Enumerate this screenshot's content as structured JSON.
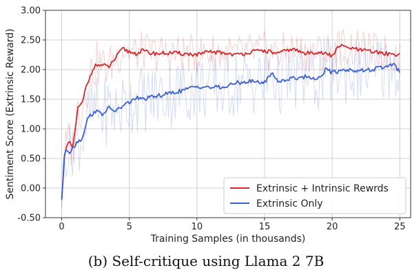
{
  "chart_data": {
    "type": "line",
    "xlabel": "Training Samples (in thousands)",
    "ylabel": "Sentiment Score (Extrinsic Reward)",
    "xlim": [
      -1.2,
      25.8
    ],
    "ylim": [
      -0.5,
      3.0
    ],
    "xticks": [
      0,
      5,
      10,
      15,
      20,
      25
    ],
    "yticks": [
      -0.5,
      0.0,
      0.5,
      1.0,
      1.5,
      2.0,
      2.5,
      3.0
    ],
    "ytick_labels": [
      "-0.50",
      "0.00",
      "0.50",
      "1.00",
      "1.50",
      "2.00",
      "2.50",
      "3.00"
    ],
    "grid": true,
    "legend_position": "lower-right",
    "series": [
      {
        "name": "Extrinsic + Intrinsic Rewrds",
        "color": "#d62728",
        "x": [
          0,
          0.2,
          0.4,
          0.6,
          0.8,
          1.0,
          1.2,
          1.5,
          1.8,
          2.0,
          2.3,
          2.6,
          3.0,
          3.5,
          4.0,
          4.5,
          5.0,
          5.5,
          6.0,
          6.5,
          7.0,
          8.0,
          9.0,
          10.0,
          11.0,
          12.0,
          13.0,
          14.0,
          15.0,
          16.0,
          17.0,
          18.0,
          19.0,
          20.0,
          20.5,
          21.0,
          22.0,
          23.0,
          24.0,
          25.0
        ],
        "y": [
          -0.2,
          0.55,
          0.7,
          0.78,
          0.65,
          1.0,
          1.35,
          1.42,
          1.7,
          1.82,
          2.02,
          2.08,
          2.07,
          2.05,
          2.2,
          2.35,
          2.3,
          2.27,
          2.32,
          2.28,
          2.27,
          2.28,
          2.27,
          2.25,
          2.3,
          2.28,
          2.25,
          2.3,
          2.32,
          2.27,
          2.35,
          2.27,
          2.3,
          2.23,
          2.4,
          2.38,
          2.33,
          2.3,
          2.27,
          2.25
        ],
        "band": [
          0.25,
          0.45,
          0.45,
          0.45,
          0.45,
          0.45,
          0.45,
          0.42,
          0.42,
          0.42,
          0.4,
          0.4,
          0.38,
          0.38,
          0.38,
          0.35,
          0.33,
          0.33,
          0.33,
          0.33,
          0.33,
          0.33,
          0.33,
          0.33,
          0.33,
          0.33,
          0.33,
          0.33,
          0.33,
          0.33,
          0.33,
          0.33,
          0.33,
          0.33,
          0.33,
          0.33,
          0.33,
          0.33,
          0.33,
          0.33
        ]
      },
      {
        "name": "Extrinsic Only",
        "color": "#3a5fd8",
        "x": [
          0,
          0.2,
          0.4,
          0.6,
          0.8,
          1.0,
          1.2,
          1.5,
          1.8,
          2.0,
          2.5,
          3.0,
          3.5,
          4.0,
          4.5,
          5.0,
          5.5,
          6.0,
          7.0,
          8.0,
          9.0,
          10.0,
          11.0,
          12.0,
          13.0,
          14.0,
          15.0,
          15.5,
          16.0,
          17.0,
          18.0,
          19.0,
          19.5,
          20.0,
          21.0,
          22.0,
          23.0,
          24.0,
          24.5,
          25.0
        ],
        "y": [
          -0.2,
          0.55,
          0.65,
          0.6,
          0.7,
          0.72,
          0.8,
          0.82,
          1.1,
          1.2,
          1.3,
          1.25,
          1.35,
          1.3,
          1.38,
          1.45,
          1.52,
          1.5,
          1.55,
          1.6,
          1.65,
          1.72,
          1.7,
          1.7,
          1.78,
          1.8,
          1.78,
          1.95,
          1.8,
          1.85,
          1.88,
          1.85,
          2.0,
          1.95,
          2.0,
          1.98,
          2.0,
          2.05,
          2.1,
          1.95
        ],
        "band": [
          0.25,
          0.45,
          0.45,
          0.5,
          0.5,
          0.5,
          0.55,
          0.55,
          0.6,
          0.6,
          0.6,
          0.6,
          0.6,
          0.6,
          0.6,
          0.6,
          0.6,
          0.6,
          0.6,
          0.6,
          0.6,
          0.6,
          0.6,
          0.6,
          0.6,
          0.6,
          0.6,
          0.6,
          0.6,
          0.6,
          0.6,
          0.6,
          0.6,
          0.6,
          0.6,
          0.6,
          0.6,
          0.6,
          0.6,
          0.6
        ]
      }
    ]
  },
  "caption": "(b) Self-critique using Llama 2 7B"
}
